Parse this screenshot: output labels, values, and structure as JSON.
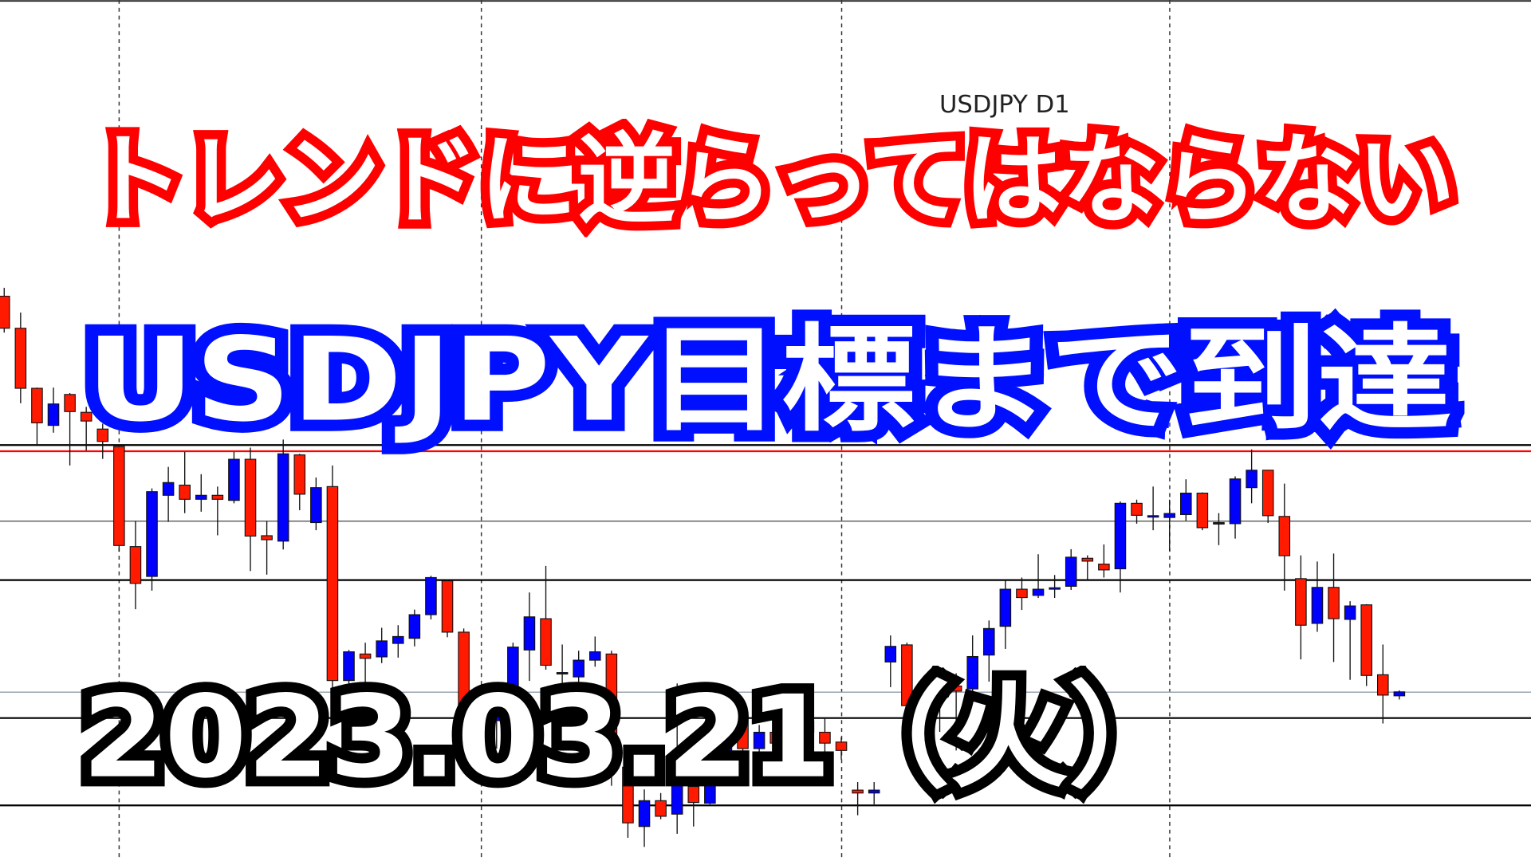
{
  "header": {
    "symbol_label": "USDJPY D1"
  },
  "overlay": {
    "headline_top": "トレンドに逆らってはならない",
    "headline_main": "USDJPY目標まで到達",
    "date": "2023.03.21（火）"
  },
  "colors": {
    "bull_candle": "#0000ff",
    "bear_candle": "#ff1a00",
    "headline_top_outline": "#ff0000",
    "headline_main_outline": "#0010ff",
    "date_outline": "#000000",
    "level_red": "#ff0000",
    "level_black": "#000000",
    "level_gray": "#555555",
    "bid_line": "#9aa5ad"
  },
  "chart_data": {
    "type": "candlestick",
    "symbol": "USDJPY",
    "timeframe": "D1",
    "ylim": [
      127.2,
      150.3
    ],
    "grid": "vertical dashed separators",
    "bull_color": "blue",
    "bear_color": "red",
    "horizontal_levels": [
      {
        "price": 138.09,
        "color": "black"
      },
      {
        "price": 137.92,
        "color": "red"
      },
      {
        "price": 136.0,
        "color": "gray"
      },
      {
        "price": 134.38,
        "color": "black"
      },
      {
        "price": 131.3,
        "color": "lightgray"
      },
      {
        "price": 130.59,
        "color": "black"
      },
      {
        "price": 128.19,
        "color": "black"
      }
    ],
    "candles_ohlc": [
      [
        142.18,
        142.41,
        141.18,
        141.3
      ],
      [
        141.3,
        141.73,
        139.24,
        139.65
      ],
      [
        139.65,
        139.67,
        138.09,
        138.7
      ],
      [
        138.63,
        139.67,
        138.43,
        139.22
      ],
      [
        139.48,
        139.52,
        137.53,
        139.01
      ],
      [
        138.99,
        139.14,
        137.94,
        138.75
      ],
      [
        138.53,
        138.68,
        137.71,
        138.19
      ],
      [
        138.05,
        138.09,
        135.16,
        135.33
      ],
      [
        135.3,
        136.0,
        133.58,
        134.29
      ],
      [
        134.48,
        136.9,
        134.09,
        136.81
      ],
      [
        136.71,
        137.49,
        135.98,
        137.06
      ],
      [
        136.99,
        137.9,
        136.22,
        136.6
      ],
      [
        136.6,
        137.29,
        136.26,
        136.71
      ],
      [
        136.71,
        136.95,
        135.61,
        136.6
      ],
      [
        136.57,
        137.9,
        136.49,
        137.7
      ],
      [
        137.7,
        138.02,
        134.63,
        135.59
      ],
      [
        135.6,
        136.0,
        134.53,
        135.49
      ],
      [
        135.45,
        138.24,
        135.22,
        137.85
      ],
      [
        137.82,
        137.85,
        136.3,
        136.74
      ],
      [
        135.96,
        137.2,
        135.75,
        136.92
      ],
      [
        136.95,
        137.53,
        131.39,
        131.62
      ],
      [
        131.62,
        132.46,
        131.42,
        132.41
      ],
      [
        132.35,
        132.66,
        131.56,
        132.23
      ],
      [
        132.27,
        133.07,
        132.1,
        132.71
      ],
      [
        132.64,
        133.14,
        132.25,
        132.83
      ],
      [
        132.78,
        133.57,
        132.56,
        133.43
      ],
      [
        133.43,
        134.5,
        133.3,
        134.45
      ],
      [
        134.36,
        134.4,
        132.81,
        132.95
      ],
      [
        132.95,
        133.05,
        130.36,
        130.56
      ],
      [
        131.0,
        131.03,
        130.36,
        130.52
      ],
      [
        130.52,
        131.33,
        129.75,
        130.9
      ],
      [
        130.95,
        132.66,
        130.36,
        132.54
      ],
      [
        132.46,
        134.04,
        131.61,
        133.37
      ],
      [
        133.32,
        134.77,
        131.92,
        132.04
      ],
      [
        131.83,
        132.61,
        130.88,
        131.84
      ],
      [
        131.72,
        132.44,
        131.28,
        132.18
      ],
      [
        132.18,
        132.83,
        132.0,
        132.41
      ],
      [
        132.35,
        132.44,
        128.73,
        129.14
      ],
      [
        129.24,
        129.34,
        127.3,
        127.71
      ],
      [
        127.61,
        128.63,
        127.05,
        128.32
      ],
      [
        128.32,
        128.53,
        127.81,
        127.89
      ],
      [
        127.95,
        131.54,
        127.41,
        128.83
      ],
      [
        128.71,
        128.94,
        127.61,
        128.27
      ],
      [
        128.25,
        130.26,
        128.22,
        129.96
      ],
      [
        129.45,
        130.79,
        129.34,
        130.57
      ],
      [
        130.57,
        131.03,
        129.45,
        129.75
      ],
      [
        129.75,
        130.4,
        129.2,
        130.2
      ],
      [
        130.2,
        130.6,
        129.6,
        129.9
      ],
      [
        129.9,
        130.8,
        129.7,
        130.5
      ],
      [
        130.5,
        131.0,
        130.0,
        130.2
      ],
      [
        130.2,
        130.6,
        129.4,
        129.9
      ],
      [
        129.93,
        130.06,
        129.45,
        129.7
      ],
      [
        128.61,
        128.83,
        127.92,
        128.53
      ],
      [
        128.53,
        128.83,
        128.22,
        128.61
      ],
      [
        132.13,
        132.86,
        131.44,
        132.56
      ],
      [
        132.6,
        132.66,
        130.36,
        130.93
      ],
      [
        130.98,
        131.44,
        130.47,
        131.25
      ],
      [
        131.33,
        131.76,
        130.21,
        131.45
      ],
      [
        131.47,
        131.82,
        129.7,
        131.33
      ],
      [
        131.39,
        132.86,
        131.08,
        132.28
      ],
      [
        132.32,
        133.27,
        131.59,
        133.05
      ],
      [
        133.11,
        134.36,
        132.49,
        134.13
      ],
      [
        134.13,
        134.45,
        133.56,
        133.9
      ],
      [
        133.96,
        135.09,
        133.89,
        134.13
      ],
      [
        134.16,
        134.52,
        133.89,
        134.17
      ],
      [
        134.21,
        135.23,
        134.11,
        135.01
      ],
      [
        134.98,
        135.06,
        134.38,
        134.9
      ],
      [
        134.82,
        135.36,
        134.45,
        134.66
      ],
      [
        134.69,
        136.54,
        134.04,
        136.49
      ],
      [
        136.49,
        136.59,
        135.93,
        136.16
      ],
      [
        136.14,
        136.95,
        135.75,
        136.15
      ],
      [
        136.1,
        136.59,
        135.18,
        136.21
      ],
      [
        136.18,
        137.15,
        136.01,
        136.77
      ],
      [
        136.77,
        136.79,
        135.75,
        135.82
      ],
      [
        135.95,
        136.22,
        135.34,
        135.96
      ],
      [
        135.93,
        137.23,
        135.52,
        137.16
      ],
      [
        136.92,
        137.97,
        136.49,
        137.4
      ],
      [
        137.4,
        137.41,
        135.95,
        136.15
      ],
      [
        136.13,
        137.03,
        134.09,
        135.05
      ],
      [
        134.42,
        135.06,
        132.2,
        133.14
      ],
      [
        133.19,
        134.89,
        132.96,
        134.18
      ],
      [
        134.18,
        135.11,
        132.13,
        133.32
      ],
      [
        133.3,
        133.8,
        131.64,
        133.67
      ],
      [
        133.7,
        133.72,
        131.47,
        131.76
      ],
      [
        131.78,
        132.61,
        130.44,
        131.22
      ],
      [
        131.2,
        131.35,
        131.1,
        131.31
      ]
    ]
  }
}
